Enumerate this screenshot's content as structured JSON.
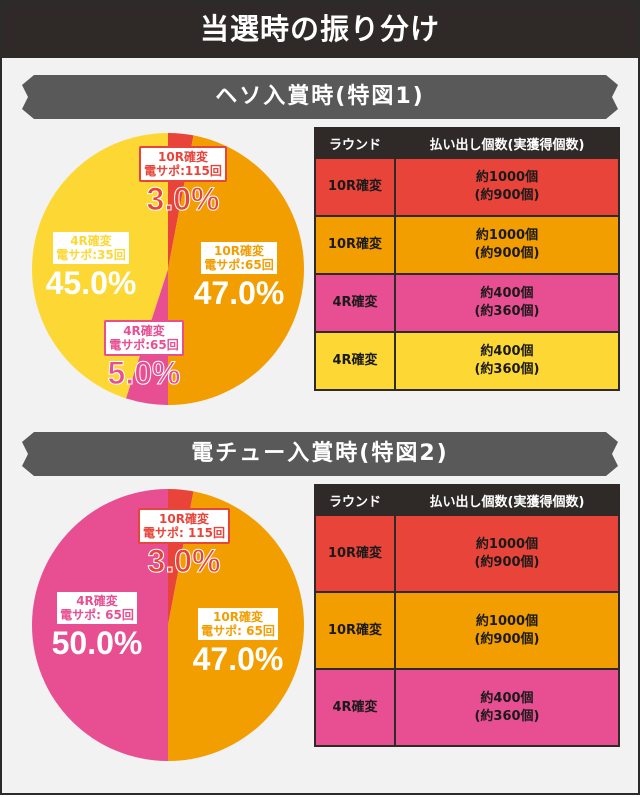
{
  "title": "当選時の振り分け",
  "colors": {
    "red": "#e8443a",
    "orange": "#f29d00",
    "pink": "#e84e92",
    "yellow": "#fdd835",
    "dark": "#2f2a28"
  },
  "table_headers": {
    "round": "ラウンド",
    "payout": "払い出し個数(実獲得個数)"
  },
  "sections": [
    {
      "heading": "ヘソ入賞時(特図1)",
      "slices": [
        {
          "color": "red",
          "line1": "10R確変",
          "line2": "電サポ:115回",
          "pct_label": "3.0%",
          "value": 3.0
        },
        {
          "color": "orange",
          "line1": "10R確変",
          "line2": "電サポ:65回",
          "pct_label": "47.0%",
          "value": 47.0
        },
        {
          "color": "pink",
          "line1": "4R確変",
          "line2": "電サポ:65回",
          "pct_label": "5.0%",
          "value": 5.0
        },
        {
          "color": "yellow",
          "line1": "4R確変",
          "line2": "電サポ:35回",
          "pct_label": "45.0%",
          "value": 45.0
        }
      ],
      "rows": [
        {
          "round": "10R確変",
          "payout1": "約1000個",
          "payout2": "(約900個)",
          "color": "red"
        },
        {
          "round": "10R確変",
          "payout1": "約1000個",
          "payout2": "(約900個)",
          "color": "orange"
        },
        {
          "round": "4R確変",
          "payout1": "約400個",
          "payout2": "(約360個)",
          "color": "pink"
        },
        {
          "round": "4R確変",
          "payout1": "約400個",
          "payout2": "(約360個)",
          "color": "yellow"
        }
      ]
    },
    {
      "heading": "電チュー入賞時(特図2)",
      "slices": [
        {
          "color": "red",
          "line1": "10R確変",
          "line2": "電サポ: 115回",
          "pct_label": "3.0%",
          "value": 3.0
        },
        {
          "color": "orange",
          "line1": "10R確変",
          "line2": "電サポ: 65回",
          "pct_label": "47.0%",
          "value": 47.0
        },
        {
          "color": "pink",
          "line1": "4R確変",
          "line2": "電サポ: 65回",
          "pct_label": "50.0%",
          "value": 50.0
        }
      ],
      "rows": [
        {
          "round": "10R確変",
          "payout1": "約1000個",
          "payout2": "(約900個)",
          "color": "red"
        },
        {
          "round": "10R確変",
          "payout1": "約1000個",
          "payout2": "(約900個)",
          "color": "orange"
        },
        {
          "round": "4R確変",
          "payout1": "約400個",
          "payout2": "(約360個)",
          "color": "pink"
        }
      ]
    }
  ],
  "chart_data": [
    {
      "type": "pie",
      "title": "ヘソ入賞時(特図1)",
      "categories": [
        "10R確変 電サポ:115回",
        "10R確変 電サポ:65回",
        "4R確変 電サポ:65回",
        "4R確変 電サポ:35回"
      ],
      "values": [
        3.0,
        47.0,
        5.0,
        45.0
      ]
    },
    {
      "type": "pie",
      "title": "電チュー入賞時(特図2)",
      "categories": [
        "10R確変 電サポ: 115回",
        "10R確変 電サポ: 65回",
        "4R確変 電サポ: 65回"
      ],
      "values": [
        3.0,
        47.0,
        50.0
      ]
    }
  ]
}
